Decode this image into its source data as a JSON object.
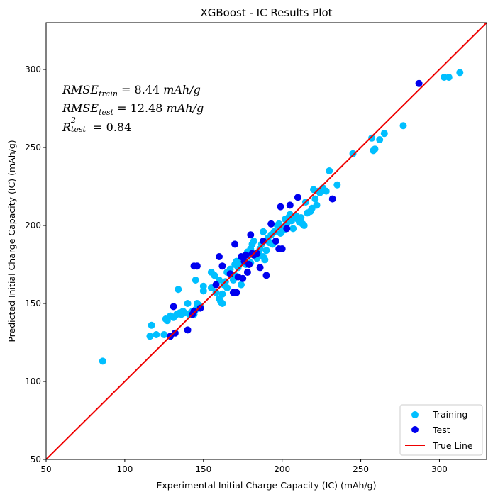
{
  "chart_data": {
    "type": "scatter",
    "title": "XGBoost - IC Results Plot",
    "xlabel": "Experimental Initial Charge Capacity (IC) (mAh/g)",
    "ylabel": "Predicted Initial Charge Capacity (IC) (mAh/g)",
    "xlim": [
      50,
      330
    ],
    "ylim": [
      50,
      330
    ],
    "xticks": [
      50,
      100,
      150,
      200,
      250,
      300
    ],
    "yticks": [
      50,
      100,
      150,
      200,
      250,
      300
    ],
    "legend_position": "bottom-right",
    "annotations": {
      "rmse_train_label": "RMSE",
      "rmse_train_sub": "train",
      "rmse_train_value": "8.44",
      "rmse_test_label": "RMSE",
      "rmse_test_sub": "test",
      "rmse_test_value": "12.48",
      "r2_label": "R",
      "r2_sup": "2",
      "r2_sub": "test",
      "r2_value": "0.84",
      "unit": "mAh/g",
      "equals": "="
    },
    "series": [
      {
        "name": "Training",
        "kind": "scatter",
        "color": "#00bfff",
        "points": [
          [
            86,
            113
          ],
          [
            116,
            129
          ],
          [
            117,
            136
          ],
          [
            120,
            130
          ],
          [
            125,
            130
          ],
          [
            126,
            140
          ],
          [
            127,
            139
          ],
          [
            129,
            142
          ],
          [
            131,
            141
          ],
          [
            133,
            143
          ],
          [
            134,
            159
          ],
          [
            135,
            144
          ],
          [
            136,
            143
          ],
          [
            137,
            145
          ],
          [
            138,
            144
          ],
          [
            140,
            150
          ],
          [
            141,
            143
          ],
          [
            142,
            144
          ],
          [
            143,
            145
          ],
          [
            144,
            143
          ],
          [
            145,
            146
          ],
          [
            146,
            150
          ],
          [
            147,
            149
          ],
          [
            148,
            148
          ],
          [
            150,
            161
          ],
          [
            150,
            158
          ],
          [
            145,
            165
          ],
          [
            155,
            160
          ],
          [
            155,
            170
          ],
          [
            157,
            168
          ],
          [
            158,
            157
          ],
          [
            160,
            165
          ],
          [
            160,
            153
          ],
          [
            161,
            151
          ],
          [
            162,
            150
          ],
          [
            162,
            156
          ],
          [
            163,
            162
          ],
          [
            164,
            164
          ],
          [
            165,
            170
          ],
          [
            165,
            160
          ],
          [
            167,
            172
          ],
          [
            168,
            168
          ],
          [
            169,
            165
          ],
          [
            170,
            175
          ],
          [
            170,
            168
          ],
          [
            171,
            177
          ],
          [
            172,
            173
          ],
          [
            173,
            176
          ],
          [
            174,
            162
          ],
          [
            175,
            179
          ],
          [
            176,
            180
          ],
          [
            177,
            175
          ],
          [
            178,
            183
          ],
          [
            179,
            181
          ],
          [
            180,
            185
          ],
          [
            180,
            176
          ],
          [
            181,
            188
          ],
          [
            182,
            190
          ],
          [
            183,
            182
          ],
          [
            184,
            179
          ],
          [
            185,
            183
          ],
          [
            186,
            185
          ],
          [
            187,
            188
          ],
          [
            188,
            180
          ],
          [
            188,
            196
          ],
          [
            189,
            178
          ],
          [
            190,
            184
          ],
          [
            191,
            192
          ],
          [
            192,
            189
          ],
          [
            193,
            194
          ],
          [
            194,
            188
          ],
          [
            195,
            196
          ],
          [
            196,
            190
          ],
          [
            197,
            200
          ],
          [
            198,
            201
          ],
          [
            199,
            195
          ],
          [
            200,
            198
          ],
          [
            201,
            197
          ],
          [
            202,
            204
          ],
          [
            203,
            201
          ],
          [
            204,
            205
          ],
          [
            205,
            207
          ],
          [
            206,
            203
          ],
          [
            207,
            198
          ],
          [
            208,
            205
          ],
          [
            209,
            206
          ],
          [
            210,
            204
          ],
          [
            211,
            202
          ],
          [
            212,
            205
          ],
          [
            213,
            201
          ],
          [
            214,
            200
          ],
          [
            215,
            215
          ],
          [
            216,
            208
          ],
          [
            218,
            209
          ],
          [
            219,
            211
          ],
          [
            220,
            223
          ],
          [
            221,
            217
          ],
          [
            222,
            213
          ],
          [
            223,
            222
          ],
          [
            224,
            221
          ],
          [
            225,
            222
          ],
          [
            226,
            224
          ],
          [
            228,
            222
          ],
          [
            230,
            235
          ],
          [
            235,
            226
          ],
          [
            245,
            246
          ],
          [
            257,
            256
          ],
          [
            258,
            248
          ],
          [
            259,
            249
          ],
          [
            262,
            255
          ],
          [
            265,
            259
          ],
          [
            277,
            264
          ],
          [
            303,
            295
          ],
          [
            306,
            295
          ],
          [
            313,
            298
          ]
        ]
      },
      {
        "name": "Test",
        "kind": "scatter",
        "color": "#0000ee",
        "points": [
          [
            129,
            129
          ],
          [
            131,
            148
          ],
          [
            132,
            131
          ],
          [
            140,
            133
          ],
          [
            143,
            143
          ],
          [
            144,
            145
          ],
          [
            144,
            174
          ],
          [
            146,
            174
          ],
          [
            148,
            147
          ],
          [
            158,
            162
          ],
          [
            160,
            180
          ],
          [
            162,
            174
          ],
          [
            167,
            169
          ],
          [
            169,
            157
          ],
          [
            170,
            188
          ],
          [
            171,
            157
          ],
          [
            172,
            167
          ],
          [
            174,
            180
          ],
          [
            175,
            166
          ],
          [
            176,
            177
          ],
          [
            177,
            181
          ],
          [
            178,
            170
          ],
          [
            179,
            175
          ],
          [
            180,
            194
          ],
          [
            181,
            182
          ],
          [
            182,
            181
          ],
          [
            184,
            182
          ],
          [
            186,
            173
          ],
          [
            188,
            190
          ],
          [
            190,
            168
          ],
          [
            193,
            201
          ],
          [
            196,
            190
          ],
          [
            198,
            185
          ],
          [
            199,
            212
          ],
          [
            200,
            185
          ],
          [
            203,
            198
          ],
          [
            205,
            213
          ],
          [
            210,
            218
          ],
          [
            232,
            217
          ],
          [
            287,
            291
          ]
        ]
      },
      {
        "name": "True Line",
        "kind": "line",
        "color": "#ee0000",
        "points": [
          [
            50,
            50
          ],
          [
            330,
            330
          ]
        ]
      }
    ]
  }
}
